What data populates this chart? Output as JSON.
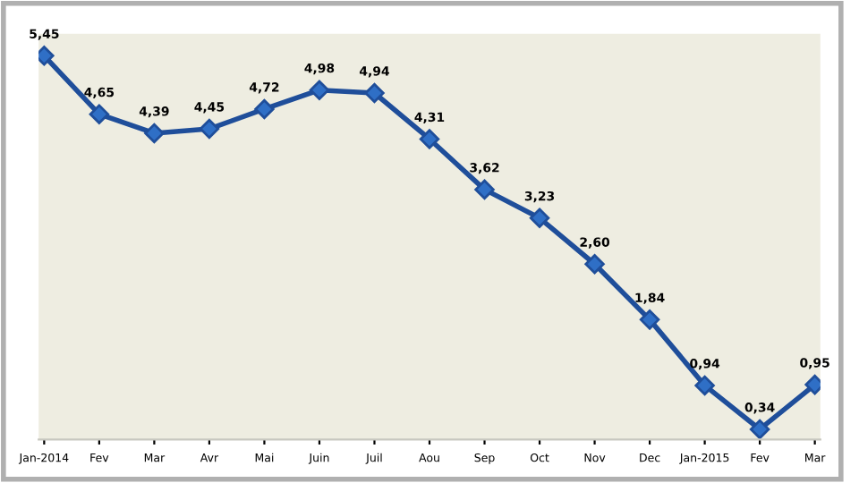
{
  "chart_data": {
    "type": "line",
    "categories": [
      "Jan-2014",
      "Fev",
      "Mar",
      "Avr",
      "Mai",
      "Juin",
      "Juil",
      "Aou",
      "Sep",
      "Oct",
      "Nov",
      "Dec",
      "Jan-2015",
      "Fev",
      "Mar"
    ],
    "series": [
      {
        "color": "#1f4e9a",
        "values": [
          5.45,
          4.65,
          4.39,
          4.45,
          4.72,
          4.98,
          4.94,
          4.31,
          3.62,
          3.23,
          2.6,
          1.84,
          0.94,
          0.34,
          0.95
        ],
        "value_labels": [
          "5,45",
          "4,65",
          "4,39",
          "4,45",
          "4,72",
          "4,98",
          "4,94",
          "4,31",
          "3,62",
          "3,23",
          "2,60",
          "1,84",
          "0,94",
          "0,34",
          "0,95"
        ]
      }
    ],
    "ylim": [
      0.2,
      5.75
    ],
    "tick_labels": "x",
    "marker": "diamond",
    "line_style": "solid",
    "grid": false,
    "legend": false
  }
}
